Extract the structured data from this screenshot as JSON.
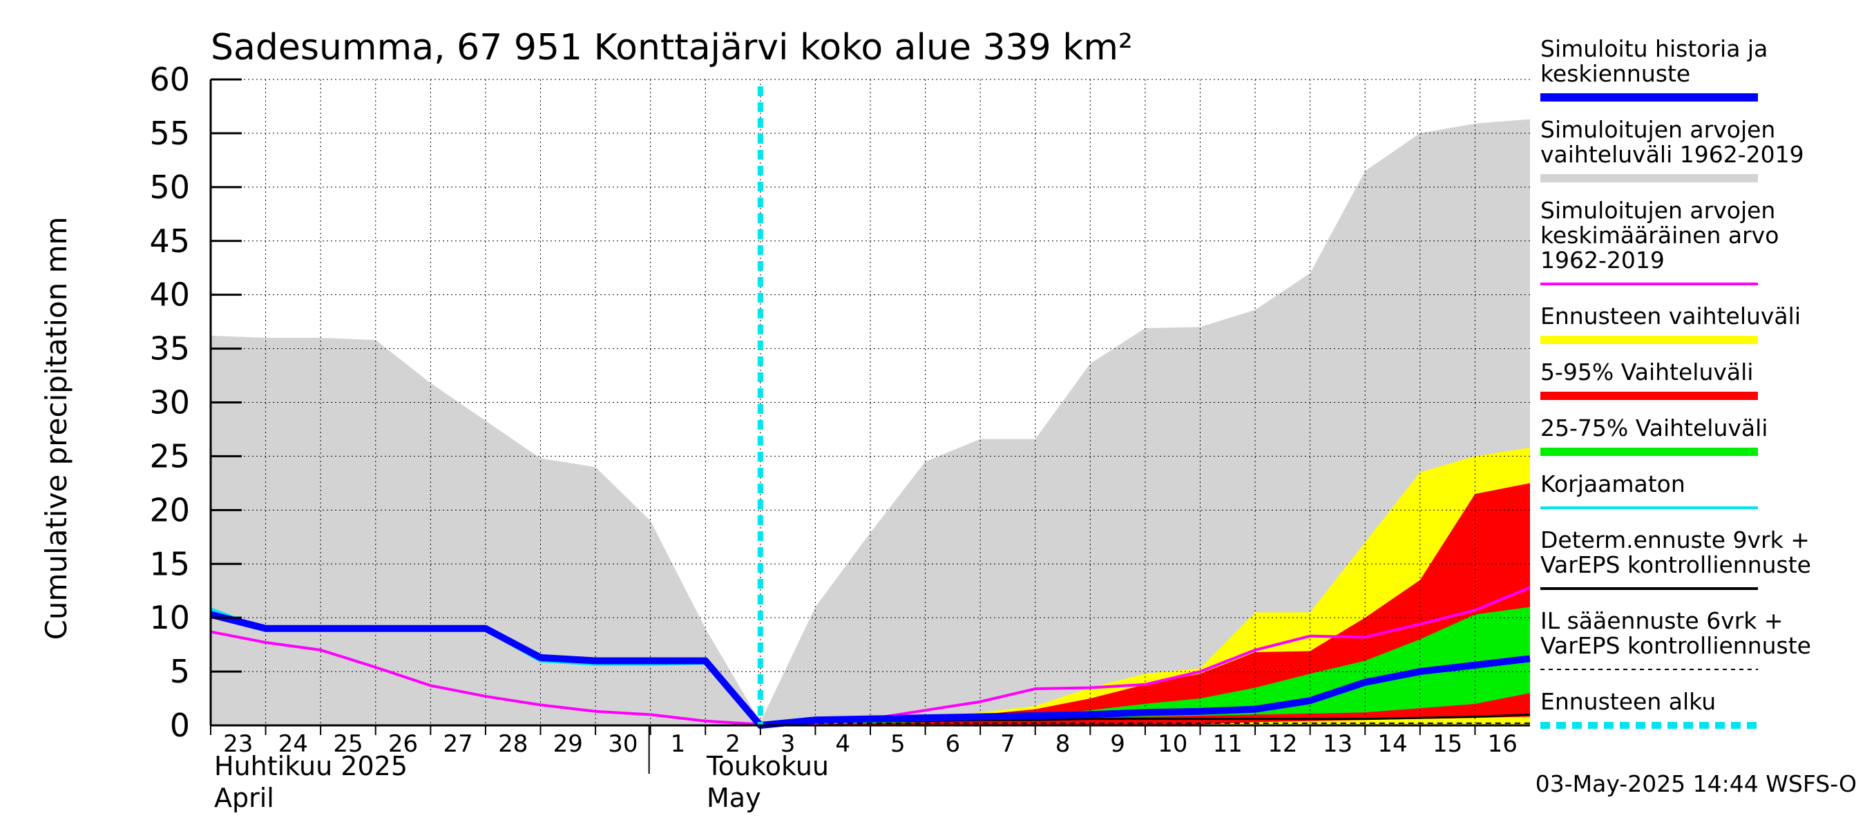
{
  "chart_data": {
    "type": "area",
    "title": "Sadesumma, 67 951 Konttajärvi koko alue 339 km²",
    "ylabel": "Cumulative precipitation   mm",
    "ylim": [
      0,
      60
    ],
    "y_ticks": [
      0,
      5,
      10,
      15,
      20,
      25,
      30,
      35,
      40,
      45,
      50,
      55,
      60
    ],
    "x_tick_labels": [
      "23",
      "24",
      "25",
      "26",
      "27",
      "28",
      "29",
      "30",
      "1",
      "2",
      "3",
      "4",
      "5",
      "6",
      "7",
      "8",
      "9",
      "10",
      "11",
      "12",
      "13",
      "14",
      "15",
      "16"
    ],
    "month_labels": {
      "april_fi": "Huhtikuu  2025",
      "april_en": "April",
      "may_fi": "Toukokuu",
      "may_en": "May"
    },
    "forecast_start_day": 10,
    "x_range": [
      0,
      24
    ],
    "series": [
      {
        "name": "Simuloitujen arvojen vaihteluväli 1962-2019",
        "kind": "band",
        "color": "#d3d3d3",
        "x": [
          0,
          1,
          2,
          3,
          4,
          5,
          6,
          7,
          8,
          9,
          10,
          11,
          12,
          13,
          14,
          15,
          16,
          17,
          18,
          19,
          20,
          21,
          22,
          23,
          24
        ],
        "lower": [
          0,
          0,
          0,
          0,
          0,
          0,
          0,
          0,
          0,
          0,
          0,
          0,
          0,
          0,
          0,
          0,
          0,
          0,
          0,
          0,
          0,
          0,
          0,
          0,
          0
        ],
        "upper": [
          36.2,
          36.0,
          36.0,
          35.8,
          31.8,
          28.3,
          24.8,
          24.0,
          19.0,
          9.0,
          0.3,
          11.0,
          17.9,
          24.5,
          26.6,
          26.6,
          33.6,
          36.9,
          37.0,
          38.6,
          42.0,
          51.5,
          55.0,
          55.9,
          56.3
        ]
      },
      {
        "name": "Ennusteen vaihteluväli",
        "kind": "band",
        "color": "#ffff00",
        "x": [
          10,
          11,
          12,
          13,
          14,
          15,
          16,
          17,
          18,
          19,
          20,
          21,
          22,
          23,
          24
        ],
        "lower": [
          0,
          0,
          0,
          0,
          0,
          0,
          0,
          0,
          0,
          0,
          0,
          0,
          0,
          0,
          0
        ],
        "upper": [
          0.3,
          0.5,
          0.7,
          0.9,
          1.2,
          1.8,
          3.5,
          4.8,
          5.3,
          10.5,
          10.5,
          17.0,
          23.5,
          25.0,
          25.8
        ]
      },
      {
        "name": "5-95% Vaihteluväli",
        "kind": "band",
        "color": "#ff0000",
        "x": [
          10,
          11,
          12,
          13,
          14,
          15,
          16,
          17,
          18,
          19,
          20,
          21,
          22,
          23,
          24
        ],
        "lower": [
          0,
          0,
          0,
          0,
          0,
          0,
          0,
          0.1,
          0.1,
          0.3,
          0.4,
          0.5,
          0.6,
          0.7,
          0.8
        ],
        "upper": [
          0.2,
          0.4,
          0.6,
          0.8,
          1.0,
          1.5,
          2.5,
          3.8,
          4.8,
          6.8,
          6.9,
          10.0,
          13.5,
          21.5,
          22.5
        ]
      },
      {
        "name": "25-75% Vaihteluväli",
        "kind": "band",
        "color": "#00ee00",
        "x": [
          10,
          11,
          12,
          13,
          14,
          15,
          16,
          17,
          18,
          19,
          20,
          21,
          22,
          23,
          24
        ],
        "lower": [
          0,
          0.1,
          0.2,
          0.3,
          0.5,
          0.6,
          0.7,
          0.8,
          0.9,
          1.0,
          1.1,
          1.2,
          1.6,
          2.0,
          3.0
        ],
        "upper": [
          0.1,
          0.3,
          0.4,
          0.6,
          0.8,
          1.0,
          1.4,
          2.0,
          2.5,
          3.5,
          4.8,
          6.0,
          8.0,
          10.3,
          11.0
        ]
      },
      {
        "name": "Simuloitujen arvojen keskimääräinen arvo 1962-2019",
        "kind": "line",
        "color": "#ff00ff",
        "width": 4,
        "x": [
          0,
          1,
          2,
          3,
          4,
          5,
          6,
          7,
          8,
          9,
          10,
          11,
          12,
          13,
          14,
          15,
          16,
          17,
          18,
          19,
          20,
          21,
          22,
          23,
          24
        ],
        "values": [
          8.7,
          7.7,
          7.0,
          5.4,
          3.7,
          2.7,
          1.9,
          1.3,
          1.0,
          0.4,
          0.1,
          0.2,
          0.6,
          1.4,
          2.2,
          3.4,
          3.5,
          3.8,
          5.0,
          7.0,
          8.3,
          8.2,
          9.4,
          10.7,
          12.8
        ]
      },
      {
        "name": "Determ.ennuste 9vrk + VarEPS kontrolliennuste",
        "kind": "line",
        "color": "#000000",
        "width": 3,
        "x": [
          10,
          11,
          12,
          13,
          14,
          15,
          16,
          17,
          18,
          19,
          20,
          21,
          22,
          23,
          24
        ],
        "values": [
          0.1,
          0.3,
          0.4,
          0.4,
          0.5,
          0.5,
          0.6,
          0.6,
          0.6,
          0.6,
          0.6,
          0.6,
          0.7,
          0.8,
          1.0
        ]
      },
      {
        "name": "IL sääennuste 6vrk + VarEPS kontrolliennuste",
        "kind": "dashed",
        "color": "#000000",
        "width": 2,
        "x": [
          10,
          11,
          12,
          13,
          14,
          15,
          16,
          17,
          18,
          19,
          20,
          21,
          22,
          23,
          24
        ],
        "values": [
          0.1,
          0.2,
          0.2,
          0.2,
          0.2,
          0.2,
          0.2,
          0.2,
          0.2,
          0.2,
          0.2,
          0.2,
          0.2,
          0.2,
          0.2
        ]
      },
      {
        "name": "Korjaamaton",
        "kind": "line",
        "color": "#00e5ee",
        "width": 5,
        "x": [
          0,
          1,
          2,
          3,
          4,
          5,
          6,
          7,
          8,
          9,
          10
        ],
        "values": [
          10.8,
          8.9,
          8.9,
          8.9,
          8.9,
          8.9,
          6.0,
          5.7,
          5.7,
          5.8,
          0.0
        ]
      },
      {
        "name": "Simuloitu historia ja keskiennuste",
        "kind": "line",
        "color": "#0000ff",
        "width": 10,
        "x": [
          0,
          1,
          2,
          3,
          4,
          5,
          6,
          7,
          8,
          9,
          10,
          11,
          12,
          13,
          14,
          15,
          16,
          17,
          18,
          19,
          20,
          21,
          22,
          23,
          24
        ],
        "values": [
          10.3,
          9.0,
          9.0,
          9.0,
          9.0,
          9.0,
          6.3,
          6.0,
          6.0,
          6.0,
          0.0,
          0.5,
          0.6,
          0.7,
          0.8,
          0.9,
          1.0,
          1.2,
          1.3,
          1.5,
          2.3,
          4.0,
          5.0,
          5.6,
          6.2
        ]
      }
    ],
    "legend": [
      {
        "lines": [
          "Simuloitu historia ja",
          "keskiennuste"
        ],
        "color": "#0000ff",
        "style": "thick"
      },
      {
        "lines": [
          "Simuloitujen arvojen",
          "vaihteluväli 1962-2019"
        ],
        "color": "#d3d3d3",
        "style": "thick"
      },
      {
        "lines": [
          "Simuloitujen arvojen",
          "keskimääräinen arvo",
          "   1962-2019"
        ],
        "color": "#ff00ff",
        "style": "thin"
      },
      {
        "lines": [
          "Ennusteen vaihteluväli"
        ],
        "color": "#ffff00",
        "style": "thick"
      },
      {
        "lines": [
          "5-95% Vaihteluväli"
        ],
        "color": "#ff0000",
        "style": "thick"
      },
      {
        "lines": [
          "25-75% Vaihteluväli"
        ],
        "color": "#00ee00",
        "style": "thick"
      },
      {
        "lines": [
          "Korjaamaton"
        ],
        "color": "#00e5ee",
        "style": "thin"
      },
      {
        "lines": [
          "Determ.ennuste 9vrk +",
          "VarEPS kontrolliennuste"
        ],
        "color": "#000000",
        "style": "thin"
      },
      {
        "lines": [
          "IL sääennuste 6vrk  +",
          "  VarEPS kontrolliennuste"
        ],
        "color": "#000000",
        "style": "dashed"
      },
      {
        "lines": [
          "Ennusteen alku"
        ],
        "color": "#00e5ee",
        "style": "thickdash"
      }
    ],
    "footer": "03-May-2025 14:44 WSFS-O"
  }
}
